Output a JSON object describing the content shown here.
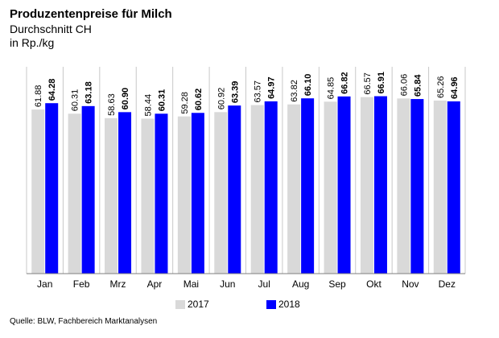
{
  "header": {
    "title": "Produzentenpreise für Milch",
    "subtitle_line1": "Durchschnitt CH",
    "subtitle_line2": "in Rp./kg"
  },
  "source": "Quelle: BLW, Fachbereich Marktanalysen",
  "colors": {
    "series_2017": "#d9d9d9",
    "series_2018": "#0000ff",
    "gridline": "#c8c8c8",
    "axis": "#7f7f7f"
  },
  "chart_data": {
    "type": "bar",
    "title": "Produzentenpreise für Milch",
    "subtitle": "Durchschnitt CH in Rp./kg",
    "categories": [
      "Jan",
      "Feb",
      "Mrz",
      "Apr",
      "Mai",
      "Jun",
      "Jul",
      "Aug",
      "Sep",
      "Okt",
      "Nov",
      "Dez"
    ],
    "series": [
      {
        "name": "2017",
        "values": [
          "61.88",
          "60.31",
          "58.63",
          "58.44",
          "59.28",
          "60.92",
          "63.57",
          "63.82",
          "64.85",
          "66.57",
          "66.06",
          "65.26"
        ]
      },
      {
        "name": "2018",
        "values": [
          "64.28",
          "63.18",
          "60.90",
          "60.31",
          "60.62",
          "63.39",
          "64.97",
          "66.10",
          "66.82",
          "66.91",
          "65.84",
          "64.96"
        ]
      }
    ],
    "ylim": [
      0,
      78
    ],
    "grid": true,
    "legend": "bottom",
    "data_labels": true
  }
}
